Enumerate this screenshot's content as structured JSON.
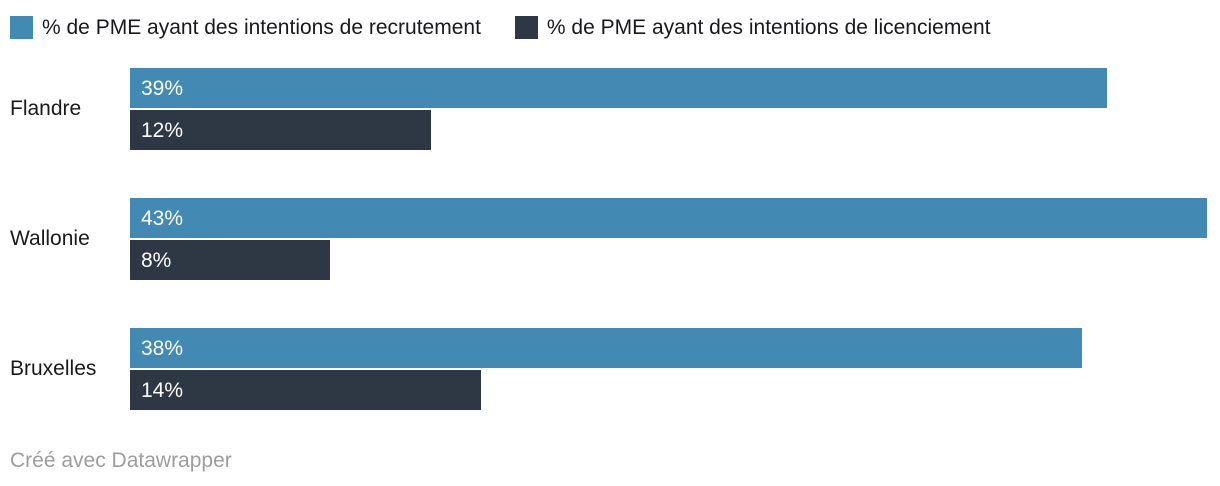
{
  "chart_data": {
    "type": "bar",
    "orientation": "horizontal",
    "title": "",
    "categories": [
      "Flandre",
      "Wallonie",
      "Bruxelles"
    ],
    "series": [
      {
        "name": "% de PME ayant des intentions de recrutement",
        "color": "#4289b4",
        "values": [
          39,
          43,
          38
        ]
      },
      {
        "name": "% de PME ayant des intentions de licenciement",
        "color": "#2e3744",
        "values": [
          12,
          8,
          14
        ]
      }
    ],
    "value_suffix": "%",
    "xlim": [
      0,
      43
    ],
    "legend_position": "top",
    "grid": false,
    "value_labels_inside": true
  },
  "footer": {
    "attribution": "Créé avec Datawrapper"
  },
  "colors": {
    "recruitment_bar": "#4289b4",
    "layoff_bar": "#2e3744",
    "category_label": "#1a1a1a",
    "value_text": "#ffffff",
    "attribution_text": "#9d9d9d",
    "background": "#ffffff"
  }
}
